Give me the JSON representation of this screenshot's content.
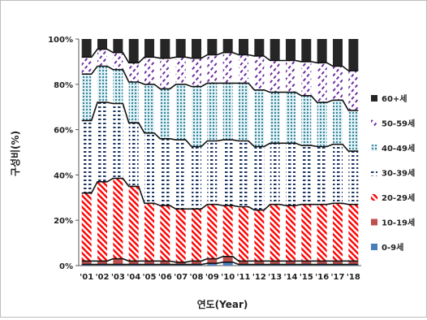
{
  "chart_data": {
    "type": "bar",
    "stacked": true,
    "percent_stacked": true,
    "title": "",
    "xlabel": "연도(Year)",
    "ylabel": "구성비(%)",
    "ylim": [
      0,
      100
    ],
    "yticks": [
      0,
      20,
      40,
      60,
      80,
      100
    ],
    "ytick_labels": [
      "0%",
      "20%",
      "40%",
      "60%",
      "80%",
      "100%"
    ],
    "grid": false,
    "legend_position": "right",
    "categories": [
      "'01",
      "'02",
      "'03",
      "'04",
      "'05",
      "'06",
      "'07",
      "'08",
      "'09",
      "'10",
      "'11",
      "'12",
      "'13",
      "'14",
      "'15",
      "'16",
      "'17",
      "'18"
    ],
    "series": [
      {
        "name": "0-9세",
        "color": "#4a7ebb",
        "pattern": "solid",
        "values": [
          0.5,
          0.5,
          0.5,
          0.5,
          0.5,
          0.5,
          0.5,
          0.5,
          1.0,
          1.5,
          0.5,
          0.5,
          0.5,
          0.5,
          0.5,
          0.5,
          0.5,
          0.5
        ]
      },
      {
        "name": "10-19세",
        "color": "#c0504d",
        "pattern": "solid",
        "values": [
          1.5,
          1.5,
          2.5,
          1.5,
          1.5,
          1.5,
          1.0,
          1.5,
          2.0,
          2.5,
          1.5,
          1.5,
          1.5,
          1.5,
          1.5,
          1.5,
          1.5,
          1.5
        ]
      },
      {
        "name": "20-29세",
        "color": "#ff0000",
        "pattern": "diagonal",
        "values": [
          30,
          35,
          35.5,
          33,
          25.5,
          24.5,
          23.5,
          23,
          24,
          22.5,
          24,
          22.5,
          25,
          24.5,
          25,
          25,
          25.5,
          25
        ]
      },
      {
        "name": "30-39세",
        "color": "#1f3864",
        "pattern": "dashed-horizontal",
        "values": [
          32,
          35,
          33,
          28,
          31,
          29.5,
          30.5,
          27.5,
          28,
          29,
          29,
          28,
          27,
          27.5,
          26,
          25.5,
          26,
          23.5
        ]
      },
      {
        "name": "40-49세",
        "color": "#31859c",
        "pattern": "dotted",
        "values": [
          20.5,
          16,
          15,
          18,
          21.5,
          22,
          24.5,
          26.5,
          25.5,
          25,
          25.5,
          25,
          22.5,
          22.5,
          22,
          19.5,
          19.5,
          18
        ]
      },
      {
        "name": "50-59세",
        "color": "#7030a0",
        "pattern": "diagonal-dashed",
        "values": [
          7.5,
          7.5,
          7.5,
          8.5,
          12,
          13.5,
          12,
          12.5,
          12.5,
          13.5,
          12.5,
          15,
          14,
          14,
          15,
          17.5,
          15,
          17.5
        ]
      },
      {
        "name": "60+세",
        "color": "#262626",
        "pattern": "solid",
        "values": [
          8,
          4.5,
          6,
          10.5,
          8,
          8.5,
          8,
          8.5,
          7,
          6,
          7,
          7.5,
          9.5,
          9.5,
          10,
          10.5,
          12,
          14
        ]
      }
    ]
  }
}
